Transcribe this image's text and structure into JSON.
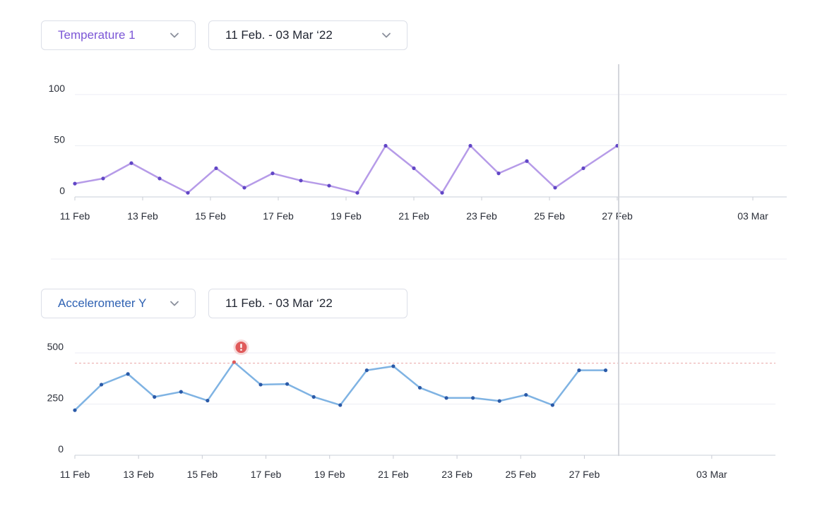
{
  "panels": [
    {
      "sensor_label": "Temperature 1",
      "date_range": "11 Feb. - 03 Mar ‘22",
      "date_has_chevron": true
    },
    {
      "sensor_label": "Accelerometer Y",
      "date_range": "11 Feb. - 03 Mar ‘22",
      "date_has_chevron": false
    }
  ],
  "colors": {
    "temperature_line": "#b69be8",
    "temperature_point": "#6146c6",
    "accel_line": "#7fb3e3",
    "accel_point": "#2a5aa8",
    "alert": "#e05a5a",
    "grid": "#eceef4",
    "cursor": "#d4d6dc"
  },
  "chart_data": [
    {
      "type": "line",
      "title": "",
      "xlabel": "",
      "ylabel": "",
      "xlim": [
        "2022-02-11",
        "2022-03-04"
      ],
      "ylim": [
        0,
        100
      ],
      "y_ticks": [
        0,
        50,
        100
      ],
      "x_ticks": [
        {
          "date": "2022-02-11",
          "label": "11 Feb"
        },
        {
          "date": "2022-02-13",
          "label": "13 Feb"
        },
        {
          "date": "2022-02-15",
          "label": "15 Feb"
        },
        {
          "date": "2022-02-17",
          "label": "17 Feb"
        },
        {
          "date": "2022-02-19",
          "label": "19 Feb"
        },
        {
          "date": "2022-02-21",
          "label": "21 Feb"
        },
        {
          "date": "2022-02-23",
          "label": "23 Feb"
        },
        {
          "date": "2022-02-25",
          "label": "25 Feb"
        },
        {
          "date": "2022-02-27",
          "label": "27 Feb"
        },
        {
          "date": "2022-03-03",
          "label": "03 Mar"
        }
      ],
      "grid": true,
      "cursor_date": "2022-02-27",
      "series": [
        {
          "x": [
            "2022-02-11",
            "2022-02-11T20:00",
            "2022-02-12T16:00",
            "2022-02-13T12:00",
            "2022-02-14T08:00",
            "2022-02-15T04:00",
            "2022-02-16T00:00",
            "2022-02-16T20:00",
            "2022-02-17T16:00",
            "2022-02-18T12:00",
            "2022-02-19T08:00",
            "2022-02-20T04:00",
            "2022-02-21T00:00",
            "2022-02-21T20:00",
            "2022-02-22T16:00",
            "2022-02-23T12:00",
            "2022-02-24T08:00",
            "2022-02-25T04:00",
            "2022-02-26T00:00",
            "2022-02-27T00:00"
          ],
          "values": [
            13,
            18,
            33,
            18,
            4,
            28,
            9,
            23,
            16,
            11,
            4,
            50,
            28,
            4,
            50,
            23,
            35,
            9,
            28,
            50
          ]
        }
      ]
    },
    {
      "type": "line",
      "title": "",
      "xlabel": "",
      "ylabel": "",
      "xlim": [
        "2022-02-11",
        "2022-03-05"
      ],
      "ylim": [
        0,
        500
      ],
      "y_ticks": [
        0,
        250,
        500
      ],
      "x_ticks": [
        {
          "date": "2022-02-11",
          "label": "11 Feb"
        },
        {
          "date": "2022-02-13",
          "label": "13 Feb"
        },
        {
          "date": "2022-02-15",
          "label": "15 Feb"
        },
        {
          "date": "2022-02-17",
          "label": "17 Feb"
        },
        {
          "date": "2022-02-19",
          "label": "19 Feb"
        },
        {
          "date": "2022-02-21",
          "label": "21 Feb"
        },
        {
          "date": "2022-02-23",
          "label": "23 Feb"
        },
        {
          "date": "2022-02-25",
          "label": "25 Feb"
        },
        {
          "date": "2022-02-27",
          "label": "27 Feb"
        },
        {
          "date": "2022-03-03",
          "label": "03 Mar"
        }
      ],
      "grid": true,
      "threshold": 450,
      "alert_index": 6,
      "cursor_date": "2022-02-27",
      "series": [
        {
          "x": [
            "2022-02-11",
            "2022-02-11T20:00",
            "2022-02-12T16:00",
            "2022-02-13T12:00",
            "2022-02-14T08:00",
            "2022-02-15T04:00",
            "2022-02-16T00:00",
            "2022-02-16T20:00",
            "2022-02-17T16:00",
            "2022-02-18T12:00",
            "2022-02-19T08:00",
            "2022-02-20T04:00",
            "2022-02-21T00:00",
            "2022-02-21T20:00",
            "2022-02-22T16:00",
            "2022-02-23T12:00",
            "2022-02-24T08:00",
            "2022-02-25T04:00",
            "2022-02-26T00:00",
            "2022-02-26T20:00",
            "2022-02-27T16:00"
          ],
          "values": [
            220,
            345,
            397,
            285,
            310,
            267,
            455,
            345,
            348,
            285,
            245,
            415,
            435,
            330,
            280,
            280,
            265,
            295,
            245,
            415,
            415
          ]
        }
      ]
    }
  ]
}
